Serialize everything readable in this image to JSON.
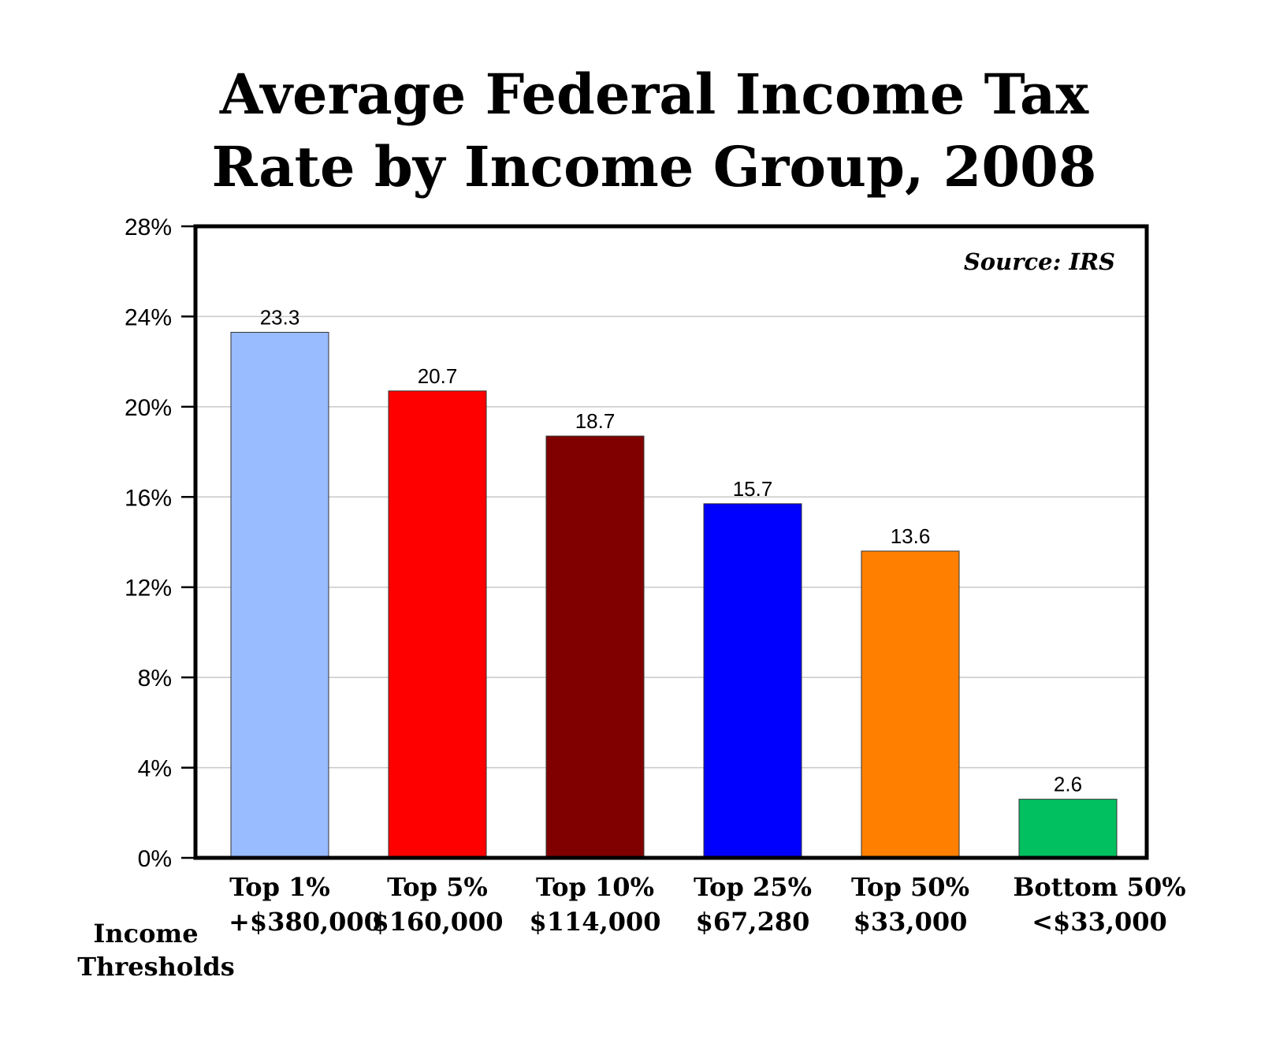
{
  "chart_data": {
    "type": "bar",
    "title_lines": [
      "Average Federal Income Tax",
      "Rate by Income Group, 2008"
    ],
    "source": "Source: IRS",
    "categories": [
      "Top 1%",
      "Top 5%",
      "Top 10%",
      "Top 25%",
      "Top 50%",
      "Bottom 50%"
    ],
    "thresholds": [
      "+$380,000",
      "$160,000",
      "$114,000",
      "$67,280",
      "$33,000",
      "<$33,000"
    ],
    "threshold_label_lines": [
      "Income",
      "Thresholds"
    ],
    "values": [
      23.3,
      20.7,
      18.7,
      15.7,
      13.6,
      2.6
    ],
    "data_labels": [
      "23.3",
      "20.7",
      "18.7",
      "15.7",
      "13.6",
      "2.6"
    ],
    "colors": [
      "#99bbff",
      "#ff0000",
      "#800000",
      "#0000ff",
      "#ff8000",
      "#00c060"
    ],
    "ylim": [
      0,
      28
    ],
    "yticks": [
      0,
      4,
      8,
      12,
      16,
      20,
      24,
      28
    ],
    "ytick_labels": [
      "0%",
      "4%",
      "8%",
      "12%",
      "16%",
      "20%",
      "24%",
      "28%"
    ],
    "grid": true,
    "legend": "none"
  }
}
